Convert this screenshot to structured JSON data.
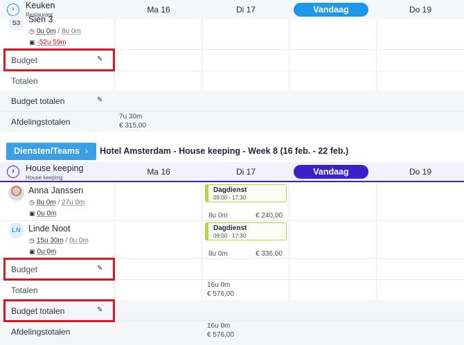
{
  "section1": {
    "dept_title": "Keuken",
    "dept_sub": "Restaurant",
    "days": [
      "Ma 16",
      "Di 17",
      "Vandaag",
      "Do 19"
    ],
    "employee": {
      "initials": "S3",
      "name": "Sien 3",
      "hours": "0u 0m",
      "hours_sep": "/",
      "hours_contract": "8u 0m",
      "balance": "-52u 59m"
    },
    "rows": {
      "budget": "Budget",
      "totalen": "Totalen",
      "budget_totalen": "Budget totalen",
      "afdelingstotalen": "Afdelingstotalen"
    },
    "afdeling_hours": "7u 30m",
    "afdeling_cost": "€ 315,00"
  },
  "toolbar": {
    "teams_button": "Diensten/Teams",
    "teams_chevron": "›",
    "week_title": "Hotel Amsterdam - House keeping - Week 8 (16 feb. - 22 feb.)"
  },
  "section2": {
    "dept_title": "House keeping",
    "dept_sub": "House keeping",
    "days": [
      "Ma 16",
      "Di 17",
      "Vandaag",
      "Do 19"
    ],
    "employees": [
      {
        "name": "Anna Janssen",
        "hours": "8u 0m",
        "hours_sep": "/",
        "hours_contract": "27u 0m",
        "balance": "0u 0m",
        "shift_title": "Dagdienst",
        "shift_time": "09:00 - 17:30",
        "shift_hours": "8u 0m",
        "shift_cost": "€ 240,00"
      },
      {
        "initials": "LN",
        "name": "Linde Noot",
        "hours": "15u 30m",
        "hours_sep": "/",
        "hours_contract": "0u 0m",
        "balance": "0u 0m",
        "shift_title": "Dagdienst",
        "shift_time": "09:00 - 17:30",
        "shift_hours": "8u 0m",
        "shift_cost": "€ 336,00"
      }
    ],
    "rows": {
      "budget": "Budget",
      "totalen": "Totalen",
      "budget_totalen": "Budget totalen",
      "afdelingstotalen": "Afdelingstotalen"
    },
    "totalen_hours": "16u 0m",
    "totalen_cost": "€ 576,00",
    "afdeling_hours": "16u 0m",
    "afdeling_cost": "€ 576,00"
  },
  "icons": {
    "expand": "›",
    "pencil": "✎",
    "clock": "◷",
    "balance": "▣"
  },
  "colors": {
    "accent_blue": "#1f97e8",
    "accent_purple": "#3a20c9",
    "highlight_red": "#e0141e",
    "shift_green": "#b4d44a"
  }
}
